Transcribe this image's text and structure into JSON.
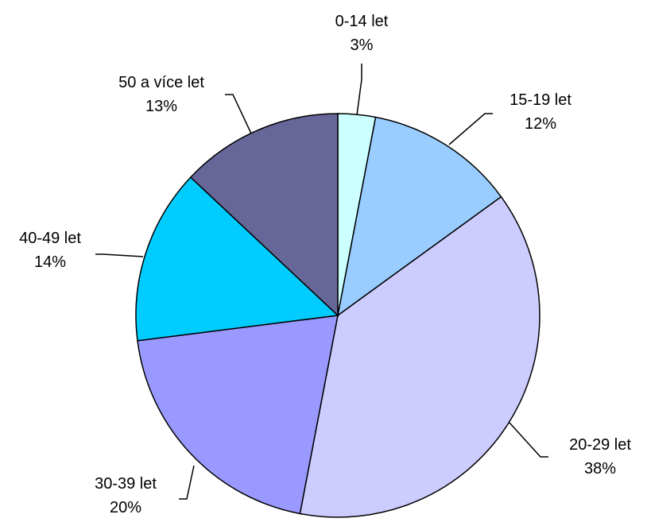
{
  "chart_data": {
    "type": "pie",
    "categories": [
      "0-14 let",
      "15-19 let",
      "20-29 let",
      "30-39 let",
      "40-49 let",
      "50 a více let"
    ],
    "values": [
      3,
      12,
      38,
      20,
      14,
      13
    ],
    "labels": [
      {
        "name": "0-14 let",
        "pct": "3%"
      },
      {
        "name": "15-19 let",
        "pct": "12%"
      },
      {
        "name": "20-29 let",
        "pct": "38%"
      },
      {
        "name": "30-39 let",
        "pct": "20%"
      },
      {
        "name": "40-49 let",
        "pct": "14%"
      },
      {
        "name": "50 a více let",
        "pct": "13%"
      }
    ],
    "colors": [
      "#ccffff",
      "#99ccff",
      "#ccccff",
      "#9999ff",
      "#00ccff",
      "#666699"
    ],
    "start_angle": "12 o'clock",
    "direction": "clockwise",
    "legend": "none"
  }
}
